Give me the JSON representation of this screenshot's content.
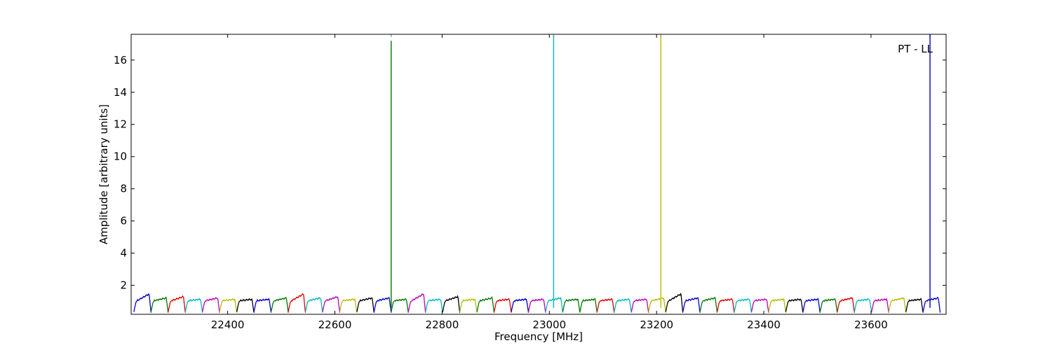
{
  "chart_data": {
    "type": "line",
    "title": "",
    "xlabel": "Frequency [MHz]",
    "ylabel": "Amplitude [arbitrary units]",
    "xlim": [
      22220,
      23740
    ],
    "ylim": [
      0.2,
      17.6
    ],
    "xticks": [
      22400,
      22600,
      22800,
      23000,
      23200,
      23400,
      23600
    ],
    "yticks": [
      2,
      4,
      6,
      8,
      10,
      12,
      14,
      16
    ],
    "grid": false,
    "legend": "none",
    "annotation": "PT - LL",
    "series_colors": [
      "#0000cc",
      "#007700",
      "#dd0000",
      "#00bbbb",
      "#bb00bb",
      "#bbbb00",
      "#000000"
    ],
    "channel_start": 22225,
    "channel_width": 32,
    "channel_count": 47,
    "channels": [
      {
        "start": 22225,
        "color": "#0000cc",
        "peak": 1.6
      },
      {
        "start": 22257,
        "color": "#007700",
        "peak": 1.3
      },
      {
        "start": 22289,
        "color": "#dd0000",
        "peak": 1.4
      },
      {
        "start": 22321,
        "color": "#00bbbb",
        "peak": 1.2
      },
      {
        "start": 22353,
        "color": "#bb00bb",
        "peak": 1.3
      },
      {
        "start": 22385,
        "color": "#bbbb00",
        "peak": 1.2
      },
      {
        "start": 22417,
        "color": "#000000",
        "peak": 1.2
      },
      {
        "start": 22449,
        "color": "#0000cc",
        "peak": 1.2
      },
      {
        "start": 22481,
        "color": "#007700",
        "peak": 1.3
      },
      {
        "start": 22513,
        "color": "#dd0000",
        "peak": 1.6
      },
      {
        "start": 22545,
        "color": "#00bbbb",
        "peak": 1.3
      },
      {
        "start": 22577,
        "color": "#bb00bb",
        "peak": 1.4
      },
      {
        "start": 22609,
        "color": "#bbbb00",
        "peak": 1.2
      },
      {
        "start": 22641,
        "color": "#000000",
        "peak": 1.3
      },
      {
        "start": 22673,
        "color": "#0000cc",
        "peak": 1.3
      },
      {
        "start": 22705,
        "color": "#007700",
        "peak": 1.2
      },
      {
        "start": 22737,
        "color": "#bb00bb",
        "peak": 1.6
      },
      {
        "start": 22769,
        "color": "#00bbbb",
        "peak": 1.2
      },
      {
        "start": 22801,
        "color": "#000000",
        "peak": 1.4
      },
      {
        "start": 22833,
        "color": "#bbbb00",
        "peak": 1.2
      },
      {
        "start": 22865,
        "color": "#007700",
        "peak": 1.3
      },
      {
        "start": 22897,
        "color": "#dd0000",
        "peak": 1.2
      },
      {
        "start": 22929,
        "color": "#0000cc",
        "peak": 1.2
      },
      {
        "start": 22961,
        "color": "#bb00bb",
        "peak": 1.2
      },
      {
        "start": 22993,
        "color": "#00bbbb",
        "peak": 1.3
      },
      {
        "start": 23025,
        "color": "#007700",
        "peak": 1.2
      },
      {
        "start": 23057,
        "color": "#007700",
        "peak": 1.2
      },
      {
        "start": 23089,
        "color": "#dd0000",
        "peak": 1.2
      },
      {
        "start": 23121,
        "color": "#00bbbb",
        "peak": 1.2
      },
      {
        "start": 23153,
        "color": "#bb00bb",
        "peak": 1.2
      },
      {
        "start": 23185,
        "color": "#bbbb00",
        "peak": 1.3
      },
      {
        "start": 23217,
        "color": "#000000",
        "peak": 1.6
      },
      {
        "start": 23249,
        "color": "#0000cc",
        "peak": 1.3
      },
      {
        "start": 23281,
        "color": "#007700",
        "peak": 1.3
      },
      {
        "start": 23313,
        "color": "#dd0000",
        "peak": 1.2
      },
      {
        "start": 23345,
        "color": "#00bbbb",
        "peak": 1.2
      },
      {
        "start": 23377,
        "color": "#bb00bb",
        "peak": 1.2
      },
      {
        "start": 23409,
        "color": "#bbbb00",
        "peak": 1.2
      },
      {
        "start": 23441,
        "color": "#000000",
        "peak": 1.2
      },
      {
        "start": 23473,
        "color": "#0000cc",
        "peak": 1.2
      },
      {
        "start": 23505,
        "color": "#007700",
        "peak": 1.2
      },
      {
        "start": 23537,
        "color": "#dd0000",
        "peak": 1.3
      },
      {
        "start": 23569,
        "color": "#00bbbb",
        "peak": 1.2
      },
      {
        "start": 23601,
        "color": "#bb00bb",
        "peak": 1.2
      },
      {
        "start": 23633,
        "color": "#bbbb00",
        "peak": 1.3
      },
      {
        "start": 23665,
        "color": "#000000",
        "peak": 1.2
      },
      {
        "start": 23697,
        "color": "#0000cc",
        "peak": 1.3
      }
    ],
    "spikes": [
      {
        "x": 22705,
        "y": 17.2,
        "color": "#007700"
      },
      {
        "x": 23008,
        "y": 17.5,
        "color": "#00bbbb"
      },
      {
        "x": 23208,
        "y": 17.5,
        "color": "#bbbb00"
      },
      {
        "x": 23710,
        "y": 17.6,
        "color": "#0000cc"
      }
    ]
  }
}
